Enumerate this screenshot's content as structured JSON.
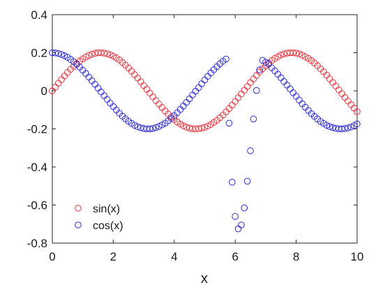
{
  "chart_data": {
    "type": "scatter",
    "title": "",
    "xlabel": "x",
    "ylabel": "",
    "xlim": [
      0,
      10
    ],
    "ylim": [
      -0.8,
      0.4
    ],
    "xticks": [
      0,
      2,
      4,
      6,
      8,
      10
    ],
    "yticks": [
      -0.8,
      -0.6,
      -0.4,
      -0.2,
      0,
      0.2,
      0.4
    ],
    "xtick_labels": [
      "0",
      "2",
      "4",
      "6",
      "8",
      "10"
    ],
    "ytick_labels": [
      "-0.8",
      "-0.6",
      "-0.4",
      "-0.2",
      "0",
      "0.2",
      "0.4"
    ],
    "grid": false,
    "legend_position": "bottom-left",
    "marker": "open-circle",
    "series": [
      {
        "name": "sin(x)",
        "color": "#e8333a",
        "x": [
          0.0,
          0.1,
          0.2,
          0.3,
          0.4,
          0.5,
          0.6,
          0.7,
          0.8,
          0.9,
          1.0,
          1.1,
          1.2,
          1.3,
          1.4,
          1.5,
          1.6,
          1.7,
          1.8,
          1.9,
          2.0,
          2.1,
          2.2,
          2.3,
          2.4,
          2.5,
          2.6,
          2.7,
          2.8,
          2.9,
          3.0,
          3.1,
          3.2,
          3.3,
          3.4,
          3.5,
          3.6,
          3.7,
          3.8,
          3.9,
          4.0,
          4.1,
          4.2,
          4.3,
          4.4,
          4.5,
          4.6,
          4.7,
          4.8,
          4.9,
          5.0,
          5.1,
          5.2,
          5.3,
          5.4,
          5.5,
          5.6,
          5.7,
          5.8,
          5.9,
          6.0,
          6.1,
          6.2,
          6.3,
          6.4,
          6.5,
          6.6,
          6.7,
          6.8,
          6.9,
          7.0,
          7.1,
          7.2,
          7.3,
          7.4,
          7.5,
          7.6,
          7.7,
          7.8,
          7.9,
          8.0,
          8.1,
          8.2,
          8.3,
          8.4,
          8.5,
          8.6,
          8.7,
          8.8,
          8.9,
          9.0,
          9.1,
          9.2,
          9.3,
          9.4,
          9.5,
          9.6,
          9.7,
          9.8,
          9.9,
          10.0
        ],
        "y": [
          0.0,
          0.02,
          0.04,
          0.059,
          0.078,
          0.096,
          0.113,
          0.129,
          0.143,
          0.157,
          0.168,
          0.178,
          0.186,
          0.193,
          0.197,
          0.2,
          0.2,
          0.198,
          0.195,
          0.189,
          0.182,
          0.173,
          0.162,
          0.149,
          0.135,
          0.12,
          0.103,
          0.085,
          0.067,
          0.048,
          0.028,
          0.008,
          -0.012,
          -0.032,
          -0.051,
          -0.07,
          -0.088,
          -0.106,
          -0.122,
          -0.137,
          -0.151,
          -0.164,
          -0.175,
          -0.184,
          -0.191,
          -0.196,
          -0.199,
          -0.2,
          -0.199,
          -0.196,
          -0.192,
          -0.185,
          -0.177,
          -0.166,
          -0.155,
          -0.141,
          -0.127,
          -0.111,
          -0.093,
          -0.075,
          -0.056,
          -0.036,
          -0.017,
          0.003,
          0.023,
          0.043,
          0.062,
          0.081,
          0.099,
          0.116,
          0.131,
          0.146,
          0.159,
          0.17,
          0.179,
          0.188,
          0.194,
          0.198,
          0.2,
          0.2,
          0.198,
          0.194,
          0.187,
          0.179,
          0.17,
          0.159,
          0.146,
          0.132,
          0.116,
          0.1,
          0.082,
          0.063,
          0.044,
          0.025,
          0.005,
          -0.015,
          -0.035,
          -0.054,
          -0.073,
          -0.091,
          -0.109
        ]
      },
      {
        "name": "cos(x)",
        "color": "#2a2ad8",
        "x": [
          0.0,
          0.1,
          0.2,
          0.3,
          0.4,
          0.5,
          0.6,
          0.7,
          0.8,
          0.9,
          1.0,
          1.1,
          1.2,
          1.3,
          1.4,
          1.5,
          1.6,
          1.7,
          1.8,
          1.9,
          2.0,
          2.1,
          2.2,
          2.3,
          2.4,
          2.5,
          2.6,
          2.7,
          2.8,
          2.9,
          3.0,
          3.1,
          3.2,
          3.3,
          3.4,
          3.5,
          3.6,
          3.7,
          3.8,
          3.9,
          4.0,
          4.1,
          4.2,
          4.3,
          4.4,
          4.5,
          4.6,
          4.7,
          4.8,
          4.9,
          5.0,
          5.1,
          5.2,
          5.3,
          5.4,
          5.5,
          5.6,
          5.7,
          5.8,
          5.9,
          6.0,
          6.1,
          6.2,
          6.3,
          6.4,
          6.5,
          6.6,
          6.7,
          6.8,
          6.9,
          7.0,
          7.1,
          7.2,
          7.3,
          7.4,
          7.5,
          7.6,
          7.7,
          7.8,
          7.9,
          8.0,
          8.1,
          8.2,
          8.3,
          8.4,
          8.5,
          8.6,
          8.7,
          8.8,
          8.9,
          9.0,
          9.1,
          9.2,
          9.3,
          9.4,
          9.5,
          9.6,
          9.7,
          9.8,
          9.9,
          10.0
        ],
        "y": [
          0.2,
          0.199,
          0.196,
          0.191,
          0.184,
          0.176,
          0.165,
          0.153,
          0.139,
          0.124,
          0.108,
          0.091,
          0.072,
          0.053,
          0.034,
          0.014,
          -0.006,
          -0.026,
          -0.045,
          -0.065,
          -0.083,
          -0.101,
          -0.118,
          -0.133,
          -0.147,
          -0.16,
          -0.171,
          -0.181,
          -0.189,
          -0.194,
          -0.198,
          -0.2,
          -0.2,
          -0.198,
          -0.193,
          -0.187,
          -0.179,
          -0.17,
          -0.158,
          -0.145,
          -0.131,
          -0.115,
          -0.098,
          -0.08,
          -0.061,
          -0.042,
          -0.022,
          -0.002,
          0.017,
          0.037,
          0.057,
          0.076,
          0.094,
          0.111,
          0.127,
          0.142,
          0.155,
          0.167,
          -0.17,
          -0.48,
          -0.66,
          -0.725,
          -0.705,
          -0.615,
          -0.475,
          -0.315,
          -0.148,
          0.002,
          0.11,
          0.16,
          0.15,
          0.14,
          0.121,
          0.105,
          0.087,
          0.069,
          0.049,
          0.03,
          0.01,
          -0.01,
          -0.029,
          -0.049,
          -0.068,
          -0.086,
          -0.103,
          -0.12,
          -0.134,
          -0.148,
          -0.161,
          -0.171,
          -0.181,
          -0.188,
          -0.193,
          -0.197,
          -0.2,
          -0.2,
          -0.198,
          -0.195,
          -0.19,
          -0.183,
          -0.174
        ]
      }
    ]
  }
}
